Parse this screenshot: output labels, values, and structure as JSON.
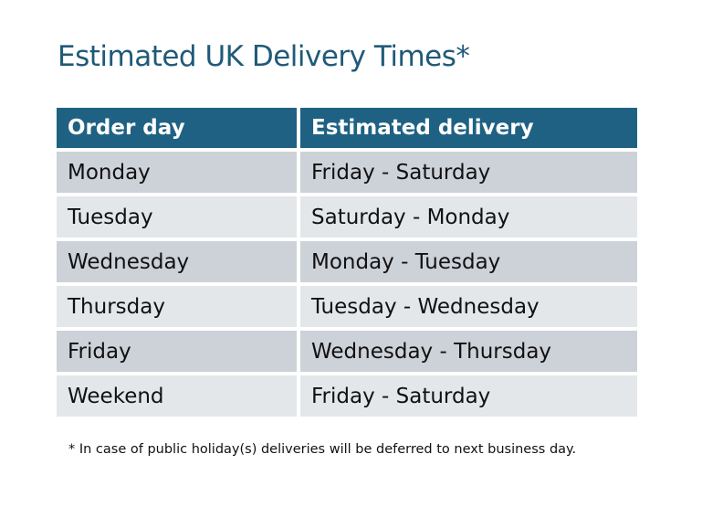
{
  "title": "Estimated UK Delivery Times*",
  "table": {
    "headers": [
      "Order day",
      "Estimated delivery"
    ],
    "rows": [
      [
        "Monday",
        "Friday - Saturday"
      ],
      [
        "Tuesday",
        "Saturday - Monday"
      ],
      [
        "Wednesday",
        "Monday - Tuesday"
      ],
      [
        "Thursday",
        "Tuesday - Wednesday"
      ],
      [
        "Friday",
        "Wednesday - Thursday"
      ],
      [
        "Weekend",
        "Friday - Saturday"
      ]
    ]
  },
  "footnote": "* In case of public holiday(s) deliveries will be deferred to next business day.",
  "colors": {
    "title": "#1f5a78",
    "header": "#1f6183",
    "row_dark": "#cdd1d8",
    "row_light": "#e4e7ea"
  }
}
